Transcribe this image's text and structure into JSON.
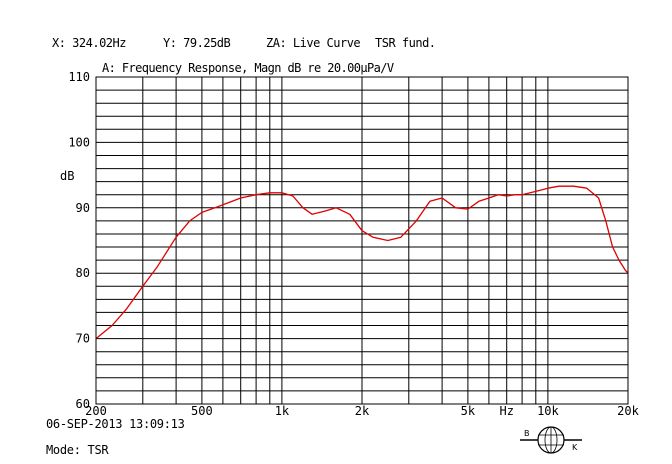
{
  "header": {
    "cursor_x": "X: 324.02Hz",
    "cursor_y": "Y: 79.25dB",
    "za": "ZA: Live Curve",
    "curve_name": "TSR fund."
  },
  "chart_data": {
    "type": "line",
    "title": "A: Frequency Response, Magn dB re 20.00µPa/V",
    "ylabel": "dB",
    "xlabel": "",
    "xscale": "log",
    "xlim": [
      200,
      20000
    ],
    "ylim": [
      60,
      110
    ],
    "grid": true,
    "x_ticks": [
      {
        "value": 200,
        "label": "200"
      },
      {
        "value": 500,
        "label": "500"
      },
      {
        "value": 1000,
        "label": "1k"
      },
      {
        "value": 2000,
        "label": "2k"
      },
      {
        "value": 5000,
        "label": "5k"
      },
      {
        "value": 7000,
        "label": "Hz"
      },
      {
        "value": 10000,
        "label": "10k"
      },
      {
        "value": 20000,
        "label": "20k"
      }
    ],
    "y_ticks": [
      {
        "value": 60,
        "label": "60"
      },
      {
        "value": 70,
        "label": "70"
      },
      {
        "value": 80,
        "label": "80"
      },
      {
        "value": 90,
        "label": "90"
      },
      {
        "value": 100,
        "label": "100"
      },
      {
        "value": 110,
        "label": "110"
      }
    ],
    "line_color": "#e00000",
    "series": [
      {
        "name": "TSR fund.",
        "x": [
          200,
          230,
          260,
          300,
          340,
          400,
          450,
          500,
          560,
          630,
          700,
          800,
          900,
          1000,
          1100,
          1200,
          1300,
          1450,
          1600,
          1800,
          2000,
          2200,
          2500,
          2800,
          3200,
          3600,
          4000,
          4500,
          5000,
          5500,
          6000,
          6500,
          7000,
          7500,
          8000,
          9000,
          10000,
          11000,
          12500,
          14000,
          15500,
          16500,
          17500,
          18500,
          19500,
          20000
        ],
        "y": [
          70,
          72,
          74.5,
          78,
          81,
          85.5,
          88,
          89.3,
          90,
          90.8,
          91.5,
          92,
          92.3,
          92.3,
          91.8,
          90,
          89,
          89.5,
          90,
          89,
          86.5,
          85.5,
          85,
          85.5,
          88,
          91,
          91.5,
          90,
          89.8,
          91,
          91.5,
          92,
          91.8,
          92,
          92,
          92.5,
          93,
          93.3,
          93.3,
          93,
          91.5,
          88,
          84,
          82,
          80.5,
          80
        ]
      }
    ]
  },
  "footer": {
    "date": "06-SEP-2013 13:09:13",
    "mode": "Mode: TSR"
  },
  "logo": {
    "letters": "B & K"
  }
}
